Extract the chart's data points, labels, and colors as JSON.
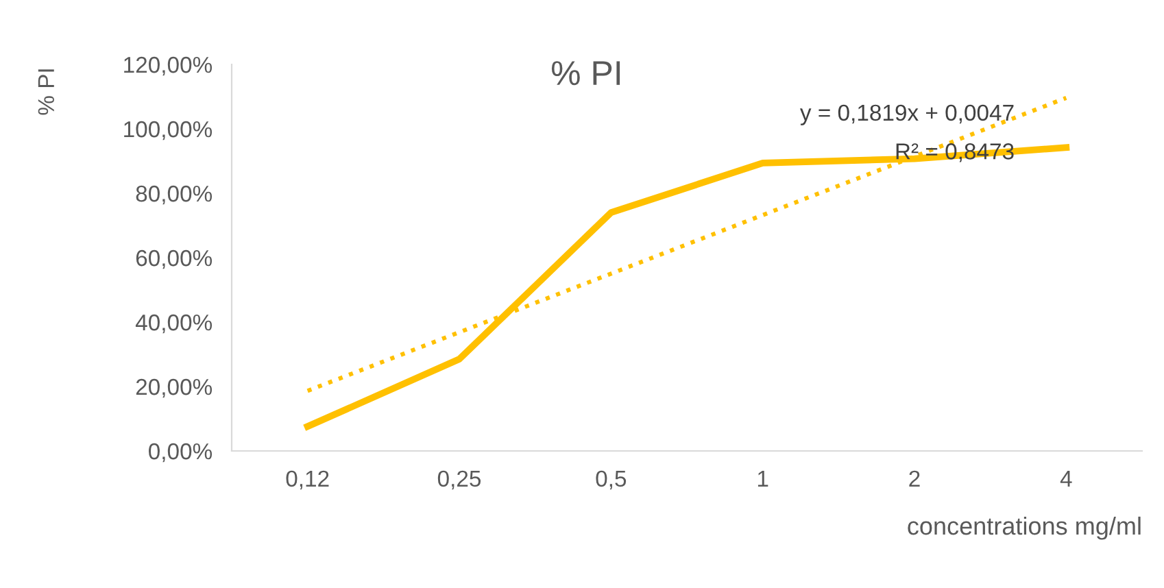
{
  "chart_data": {
    "type": "line",
    "title": "% PI",
    "xlabel": "concentrations mg/ml",
    "ylabel": "% PI",
    "categories": [
      "0,12",
      "0,25",
      "0,5",
      "1",
      "2",
      "4"
    ],
    "series": [
      {
        "color": "#ffc000",
        "values": [
          7.6,
          28.5,
          74,
          89.4,
          90.7,
          94.2
        ],
        "line_style": "solid"
      },
      {
        "color": "#ffc000",
        "values": [
          18.66,
          36.85,
          55.04,
          73.23,
          91.42,
          109.61
        ],
        "line_style": "dotted"
      }
    ],
    "annotations": [
      "y = 0,1819x + 0,0047",
      "R² = 0,8473"
    ],
    "ylim": [
      0,
      120
    ],
    "yticks": [
      {
        "value": 0,
        "label": "0,00%"
      },
      {
        "value": 20,
        "label": "20,00%"
      },
      {
        "value": 40,
        "label": "40,00%"
      },
      {
        "value": 60,
        "label": "60,00%"
      },
      {
        "value": 80,
        "label": "80,00%"
      },
      {
        "value": 100,
        "label": "100,00%"
      },
      {
        "value": 120,
        "label": "120,00%"
      }
    ],
    "grid": false,
    "legend": false,
    "marker": "none"
  }
}
